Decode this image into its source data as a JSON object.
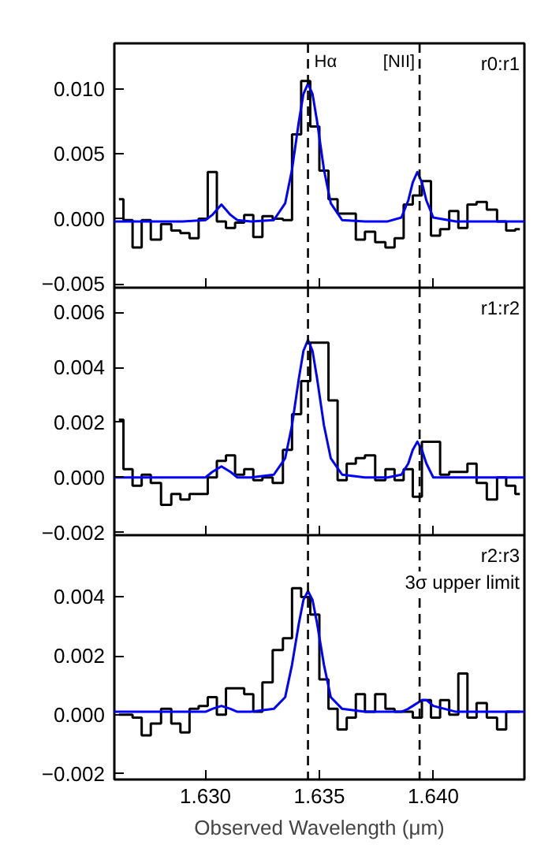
{
  "chart_data": [
    {
      "type": "line",
      "xlim": [
        1.626,
        1.644
      ],
      "ylim": [
        -0.0053,
        0.0135
      ],
      "xticks": [
        1.63,
        1.635,
        1.64
      ],
      "yticks": [
        {
          "value": -0.005,
          "label": "−0.005"
        },
        {
          "value": 0,
          "label": "0.000"
        },
        {
          "value": 0.005,
          "label": "0.005"
        },
        {
          "value": 0.01,
          "label": "0.010"
        }
      ],
      "tick_labels": "y",
      "grid": false,
      "series": [
        {
          "type": "step",
          "color": "#000000",
          "x": [
            1.6262,
            1.6266,
            1.627,
            1.6274,
            1.6278,
            1.6283,
            1.6287,
            1.6291,
            1.6295,
            1.6299,
            1.6303,
            1.6307,
            1.6311,
            1.6315,
            1.6319,
            1.6323,
            1.6327,
            1.6332,
            1.6336,
            1.634,
            1.6344,
            1.6348,
            1.6352,
            1.6356,
            1.636,
            1.6364,
            1.6368,
            1.6372,
            1.6377,
            1.6381,
            1.6385,
            1.6389,
            1.6393,
            1.6397,
            1.6401,
            1.6405,
            1.6409,
            1.6413,
            1.6417,
            1.6421,
            1.6426,
            1.643,
            1.6434,
            1.6438
          ],
          "values": [
            0.0015,
            -0.0001,
            -0.0022,
            -0.0001,
            -0.0016,
            -0.0004,
            -0.0009,
            -0.0011,
            -0.0015,
            0.0,
            0.0036,
            -0.0002,
            -0.0007,
            -0.0003,
            0.0003,
            -0.0014,
            0.0002,
            0.0,
            -0.0001,
            0.0065,
            0.0106,
            0.0071,
            0.0037,
            0.0015,
            0.0004,
            0.0004,
            -0.0016,
            -0.001,
            -0.0018,
            -0.0022,
            -0.0015,
            0.0011,
            0.0018,
            0.0029,
            -0.0013,
            -0.0008,
            0.0006,
            -0.0007,
            0.0011,
            0.0013,
            0.0007,
            -0.0002,
            -0.0009,
            -0.0008
          ]
        },
        {
          "type": "line",
          "color": "#0000ff",
          "x": [
            1.626,
            1.629,
            1.63,
            1.6303,
            1.6307,
            1.6311,
            1.6314,
            1.632,
            1.633,
            1.6335,
            1.6338,
            1.6341,
            1.6343,
            1.6345,
            1.6347,
            1.6349,
            1.6352,
            1.6355,
            1.636,
            1.637,
            1.638,
            1.6386,
            1.6389,
            1.6391,
            1.6393,
            1.6395,
            1.6397,
            1.64,
            1.641,
            1.644
          ],
          "values": [
            -0.0002,
            -0.0002,
            -0.0001,
            0.0003,
            0.0011,
            0.0003,
            -0.0001,
            -0.0002,
            -0.0001,
            0.0012,
            0.0038,
            0.0075,
            0.0096,
            0.0104,
            0.0096,
            0.0075,
            0.0038,
            0.0012,
            -0.0001,
            -0.0002,
            -0.0002,
            0.0001,
            0.0014,
            0.0028,
            0.0036,
            0.0028,
            0.0014,
            0.0001,
            -0.0002,
            -0.0002
          ]
        }
      ],
      "ref_lines": [
        {
          "axis": "x",
          "value": 1.6345,
          "label": "Hα",
          "color": "#000000",
          "line_style": "dashed"
        },
        {
          "axis": "x",
          "value": 1.6394,
          "label": "[NII]",
          "color": "#000000",
          "line_style": "dashed"
        }
      ],
      "annotations": [
        "r0:r1"
      ]
    },
    {
      "type": "line",
      "xlim": [
        1.626,
        1.644
      ],
      "ylim": [
        -0.0021,
        0.0069
      ],
      "xticks": [
        1.63,
        1.635,
        1.64
      ],
      "yticks": [
        {
          "value": -0.002,
          "label": "−0.002"
        },
        {
          "value": 0,
          "label": "0.000"
        },
        {
          "value": 0.002,
          "label": "0.002"
        },
        {
          "value": 0.004,
          "label": "0.004"
        },
        {
          "value": 0.006,
          "label": "0.006"
        }
      ],
      "tick_labels": "y",
      "grid": false,
      "series": [
        {
          "type": "step",
          "color": "#000000",
          "x": [
            1.6262,
            1.6266,
            1.627,
            1.6274,
            1.6278,
            1.6283,
            1.6287,
            1.6291,
            1.6295,
            1.6299,
            1.6303,
            1.6307,
            1.6311,
            1.6315,
            1.6319,
            1.6323,
            1.6327,
            1.6332,
            1.6336,
            1.634,
            1.6344,
            1.6348,
            1.6352,
            1.6356,
            1.636,
            1.6364,
            1.6368,
            1.6372,
            1.6377,
            1.6381,
            1.6385,
            1.6389,
            1.6393,
            1.6397,
            1.6401,
            1.6405,
            1.6409,
            1.6413,
            1.6417,
            1.6421,
            1.6426,
            1.643,
            1.6434,
            1.6438
          ],
          "values": [
            0.0021,
            0.0003,
            -0.0003,
            0.0001,
            -0.0002,
            -0.001,
            -0.0006,
            -0.0008,
            -0.0006,
            -0.0006,
            0.0,
            0.0006,
            0.0008,
            0.0001,
            0.0003,
            -0.0001,
            0.0,
            -0.0002,
            0.001,
            0.0023,
            0.0035,
            0.0049,
            0.0049,
            0.0028,
            -0.0001,
            0.0005,
            0.0007,
            0.0008,
            -0.0001,
            0.0003,
            -0.0001,
            0.0003,
            -0.0007,
            0.0013,
            0.0013,
            0.0001,
            0.0002,
            0.0002,
            0.0005,
            -0.0002,
            -0.0008,
            0.0,
            -0.0003,
            -0.0006
          ]
        },
        {
          "type": "line",
          "color": "#0000ff",
          "x": [
            1.626,
            1.629,
            1.63,
            1.6303,
            1.6307,
            1.6311,
            1.6314,
            1.632,
            1.633,
            1.6335,
            1.6338,
            1.6341,
            1.6343,
            1.6345,
            1.6347,
            1.6349,
            1.6352,
            1.6355,
            1.636,
            1.637,
            1.638,
            1.6386,
            1.6389,
            1.6391,
            1.6393,
            1.6395,
            1.6397,
            1.64,
            1.641,
            1.644
          ],
          "values": [
            0.0,
            0.0,
            0.0,
            0.0002,
            0.0004,
            0.0002,
            0.0,
            0.0,
            0.0001,
            0.0007,
            0.0019,
            0.0036,
            0.0046,
            0.005,
            0.0046,
            0.0036,
            0.0019,
            0.0007,
            0.0001,
            0.0,
            0.0,
            0.0001,
            0.0005,
            0.001,
            0.0013,
            0.001,
            0.0005,
            0.0,
            0.0,
            0.0
          ]
        }
      ],
      "ref_lines": [
        {
          "axis": "x",
          "value": 1.6345,
          "color": "#000000",
          "line_style": "dashed"
        },
        {
          "axis": "x",
          "value": 1.6394,
          "color": "#000000",
          "line_style": "dashed"
        }
      ],
      "annotations": [
        "r1:r2"
      ]
    },
    {
      "type": "line",
      "xlim": [
        1.626,
        1.644
      ],
      "ylim": [
        -0.0022,
        0.0061
      ],
      "xticks": [
        {
          "value": 1.63,
          "label": "1.630"
        },
        {
          "value": 1.635,
          "label": "1.635"
        },
        {
          "value": 1.64,
          "label": "1.640"
        }
      ],
      "yticks": [
        {
          "value": -0.002,
          "label": "−0.002"
        },
        {
          "value": 0,
          "label": "0.000"
        },
        {
          "value": 0.002,
          "label": "0.002"
        },
        {
          "value": 0.004,
          "label": "0.004"
        }
      ],
      "xlabel": "Observed Wavelength (μm)",
      "grid": false,
      "series": [
        {
          "type": "step",
          "color": "#000000",
          "x": [
            1.6262,
            1.6266,
            1.627,
            1.6274,
            1.6278,
            1.6283,
            1.6287,
            1.6291,
            1.6295,
            1.6299,
            1.6303,
            1.6307,
            1.6311,
            1.6315,
            1.6319,
            1.6323,
            1.6327,
            1.6332,
            1.6336,
            1.634,
            1.6344,
            1.6348,
            1.6352,
            1.6356,
            1.636,
            1.6364,
            1.6368,
            1.6372,
            1.6377,
            1.6381,
            1.6385,
            1.6389,
            1.6393,
            1.6397,
            1.6401,
            1.6405,
            1.6409,
            1.6413,
            1.6417,
            1.6421,
            1.6426,
            1.643,
            1.6434,
            1.6438
          ],
          "values": [
            0.0,
            0.0,
            -0.0001,
            -0.0007,
            -0.0003,
            0.0002,
            -0.0003,
            -0.0006,
            0.0002,
            0.0003,
            0.0006,
            0.0,
            0.0009,
            0.0009,
            0.0007,
            0.0001,
            0.0011,
            0.0022,
            0.0026,
            0.0043,
            0.004,
            0.0034,
            0.0012,
            0.0002,
            -0.0005,
            -0.0001,
            0.0007,
            0.0001,
            0.0007,
            0.0002,
            0.0001,
            0.0001,
            -0.0001,
            0.0005,
            -0.0001,
            0.0005,
            0.0,
            0.0014,
            -0.0001,
            0.0004,
            -0.0001,
            -0.0005,
            0.0001,
            0.0001
          ]
        },
        {
          "type": "line",
          "color": "#0000ff",
          "x": [
            1.626,
            1.629,
            1.63,
            1.6303,
            1.6307,
            1.6311,
            1.6314,
            1.632,
            1.633,
            1.6335,
            1.6338,
            1.6341,
            1.6343,
            1.6345,
            1.6347,
            1.6349,
            1.6352,
            1.6355,
            1.636,
            1.637,
            1.638,
            1.6386,
            1.6389,
            1.6391,
            1.6393,
            1.6395,
            1.6397,
            1.64,
            1.641,
            1.644
          ],
          "values": [
            0.0001,
            0.0001,
            0.0001,
            0.0002,
            0.0003,
            0.0002,
            0.0001,
            0.0001,
            0.0002,
            0.0006,
            0.0017,
            0.0031,
            0.0039,
            0.0042,
            0.0039,
            0.0031,
            0.0017,
            0.0006,
            0.0002,
            0.0001,
            0.0001,
            0.0001,
            0.0002,
            0.0003,
            0.0004,
            0.0005,
            0.0005,
            0.0003,
            0.0001,
            0.0001
          ]
        }
      ],
      "ref_lines": [
        {
          "axis": "x",
          "value": 1.6345,
          "color": "#000000",
          "line_style": "dashed"
        },
        {
          "axis": "x",
          "value": 1.6394,
          "color": "#000000",
          "line_style": "dashed"
        }
      ],
      "annotations": [
        "r2:r3",
        "3σ upper limit"
      ]
    }
  ]
}
